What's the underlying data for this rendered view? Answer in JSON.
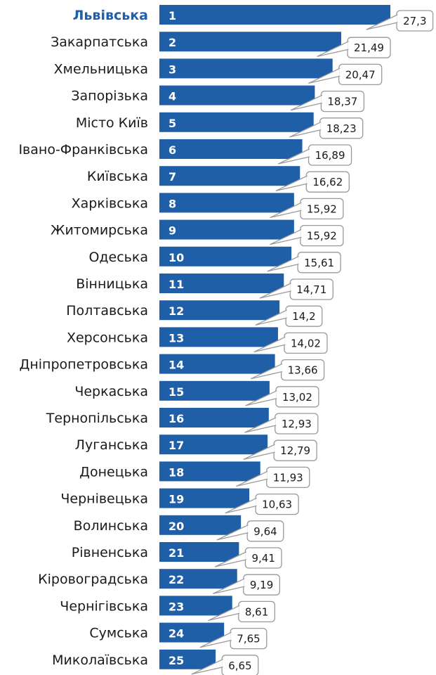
{
  "chart_data": {
    "type": "bar",
    "orientation": "horizontal",
    "highlight_category": "Львівська",
    "bar_color": "#1f5fa8",
    "highlight_label_color": "#1f5fa8",
    "callout_border_color": "#9a9a9a",
    "xlim": [
      0,
      27.3
    ],
    "categories": [
      "Львівська",
      "Закарпатська",
      "Хмельницька",
      "Запорізька",
      "Місто Київ",
      "Івано-Франківська",
      "Київська",
      "Харківська",
      "Житомирська",
      "Одеська",
      "Вінницька",
      "Полтавська",
      "Херсонська",
      "Дніпропетровська",
      "Черкаська",
      "Тернопільська",
      "Луганська",
      "Донецька",
      "Чернівецька",
      "Волинська",
      "Рівненська",
      "Кіровоградська",
      "Чернігівська",
      "Сумська",
      "Миколаївська"
    ],
    "ranks": [
      "1",
      "2",
      "3",
      "4",
      "5",
      "6",
      "7",
      "8",
      "9",
      "10",
      "11",
      "12",
      "13",
      "14",
      "15",
      "16",
      "17",
      "18",
      "19",
      "20",
      "21",
      "22",
      "23",
      "24",
      "25"
    ],
    "values": [
      27.3,
      21.49,
      20.47,
      18.37,
      18.23,
      16.89,
      16.62,
      15.92,
      15.92,
      15.61,
      14.71,
      14.2,
      14.02,
      13.66,
      13.02,
      12.93,
      12.79,
      11.93,
      10.63,
      9.64,
      9.41,
      9.19,
      8.61,
      7.65,
      6.65
    ],
    "value_labels": [
      "27,3",
      "21,49",
      "20,47",
      "18,37",
      "18,23",
      "16,89",
      "16,62",
      "15,92",
      "15,92",
      "15,61",
      "14,71",
      "14,2",
      "14,02",
      "13,66",
      "13,02",
      "12,93",
      "12,79",
      "11,93",
      "10,63",
      "9,64",
      "9,41",
      "9,19",
      "8,61",
      "7,65",
      "6,65"
    ]
  }
}
